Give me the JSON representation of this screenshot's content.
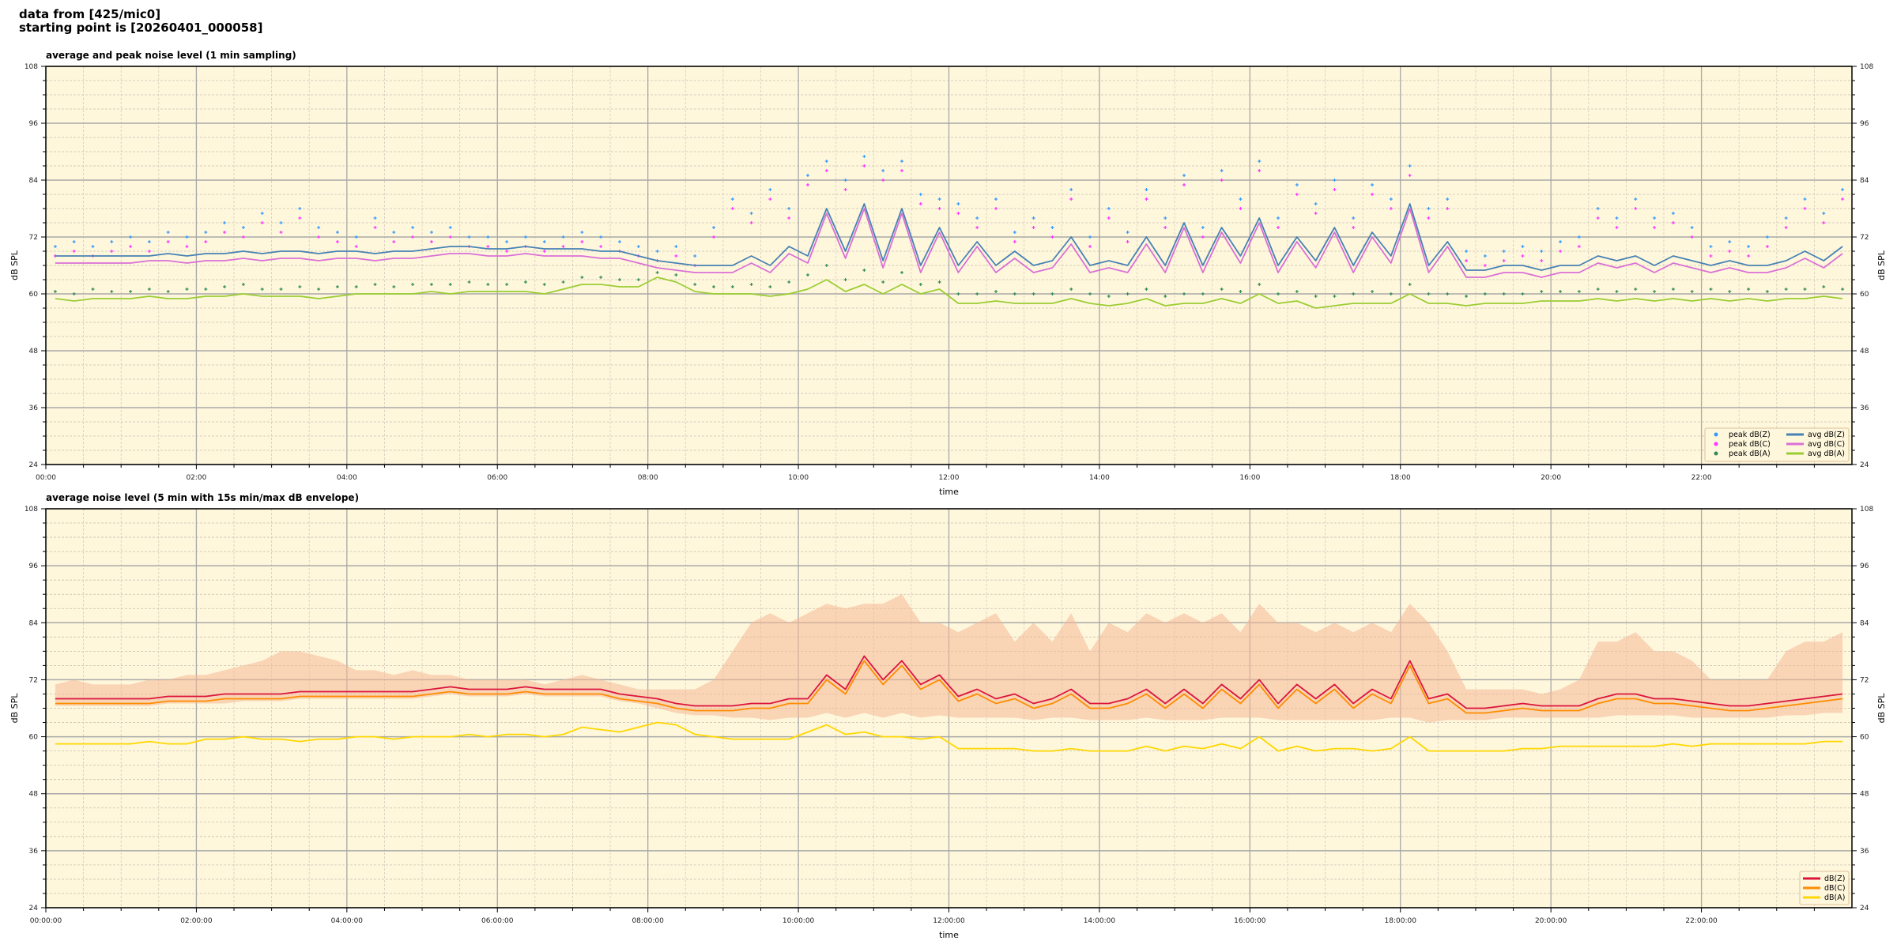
{
  "header": {
    "line1": "data from [425/mic0]",
    "line2": "starting point is [20260401_000058]"
  },
  "chart_data": [
    {
      "type": "scatter+line",
      "title": "average and peak noise level (1 min sampling)",
      "xlabel": "time",
      "ylabel": "dB SPL",
      "xlim_hours": [
        0,
        24
      ],
      "ylim": [
        24,
        108
      ],
      "yticks": [
        24,
        36,
        48,
        60,
        72,
        84,
        96,
        108
      ],
      "xticks": [
        "00:00",
        "02:00",
        "04:00",
        "06:00",
        "08:00",
        "10:00",
        "12:00",
        "14:00",
        "16:00",
        "18:00",
        "20:00",
        "22:00"
      ],
      "grid": true,
      "background": "#fff7dc",
      "legend_position": "lower-right",
      "x_step_minutes": 15,
      "scatter": [
        {
          "name": "peak dB(Z)",
          "color": "#3399ff",
          "values": [
            70,
            71,
            70,
            71,
            72,
            71,
            73,
            72,
            73,
            75,
            74,
            77,
            75,
            78,
            74,
            73,
            72,
            76,
            73,
            74,
            73,
            74,
            72,
            72,
            71,
            72,
            71,
            72,
            73,
            72,
            71,
            70,
            69,
            70,
            68,
            74,
            80,
            77,
            82,
            78,
            85,
            88,
            84,
            89,
            86,
            88,
            81,
            80,
            79,
            76,
            80,
            73,
            76,
            74,
            82,
            72,
            78,
            73,
            82,
            76,
            85,
            74,
            86,
            80,
            88,
            76,
            83,
            79,
            84,
            76,
            83,
            80,
            87,
            78,
            80,
            69,
            68,
            69,
            70,
            69,
            71,
            72,
            78,
            76,
            80,
            76,
            77,
            74,
            70,
            71,
            70,
            72,
            76,
            80,
            77,
            82
          ]
        },
        {
          "name": "peak dB(C)",
          "color": "#ff33ff",
          "values": [
            68,
            69,
            68,
            69,
            70,
            69,
            71,
            70,
            71,
            73,
            72,
            75,
            73,
            76,
            72,
            71,
            70,
            74,
            71,
            72,
            71,
            72,
            70,
            70,
            69,
            70,
            69,
            70,
            71,
            70,
            69,
            68,
            67,
            68,
            66,
            72,
            78,
            75,
            80,
            76,
            83,
            86,
            82,
            87,
            84,
            86,
            79,
            78,
            77,
            74,
            78,
            71,
            74,
            72,
            80,
            70,
            76,
            71,
            80,
            74,
            83,
            72,
            84,
            78,
            86,
            74,
            81,
            77,
            82,
            74,
            81,
            78,
            85,
            76,
            78,
            67,
            66,
            67,
            68,
            67,
            69,
            70,
            76,
            74,
            78,
            74,
            75,
            72,
            68,
            69,
            68,
            70,
            74,
            78,
            75,
            80
          ]
        },
        {
          "name": "peak dB(A)",
          "color": "#2e8b57",
          "values": [
            60.5,
            60,
            61,
            60.5,
            60.5,
            61,
            60.5,
            61,
            61,
            61.5,
            62,
            61,
            61,
            61.5,
            61,
            61.5,
            61.5,
            62,
            61.5,
            62,
            62,
            62,
            62.5,
            62,
            62,
            62.5,
            62,
            62.5,
            63.5,
            63.5,
            63,
            63,
            64.5,
            64,
            62,
            61.5,
            61.5,
            62,
            61.5,
            62.5,
            64,
            66,
            63,
            65,
            62.5,
            64.5,
            62,
            62.5,
            60,
            60,
            60.5,
            60,
            60,
            60,
            61,
            60,
            59.5,
            60,
            61,
            59.5,
            60,
            60,
            61,
            60.5,
            62,
            60,
            60.5,
            59.5,
            59.5,
            60,
            60.5,
            60,
            62,
            60,
            60,
            59.5,
            60,
            60,
            60,
            60.5,
            60.5,
            60.5,
            61,
            60.5,
            61,
            60.5,
            61,
            60.5,
            61,
            60.5,
            61,
            60.5,
            61,
            61,
            61.5,
            61
          ]
        }
      ],
      "lines": [
        {
          "name": "avg dB(Z)",
          "color": "#4682b4",
          "values": [
            68,
            68,
            68,
            68,
            68,
            68,
            68.5,
            68,
            68.5,
            68.5,
            69,
            68.5,
            69,
            69,
            68.5,
            69,
            69,
            68.5,
            69,
            69,
            69.5,
            70,
            70,
            69.5,
            69.5,
            70,
            69.5,
            69.5,
            69.5,
            69,
            69,
            68,
            67,
            66.5,
            66,
            66,
            66,
            68,
            66,
            70,
            68,
            78,
            69,
            79,
            67,
            78,
            66,
            74,
            66,
            71,
            66,
            69,
            66,
            67,
            72,
            66,
            67,
            66,
            72,
            66,
            75,
            66,
            74,
            68,
            76,
            66,
            72,
            67,
            74,
            66,
            73,
            68,
            79,
            66,
            71,
            65,
            65,
            66,
            66,
            65,
            66,
            66,
            68,
            67,
            68,
            66,
            68,
            67,
            66,
            67,
            66,
            66,
            67,
            69,
            67,
            70
          ]
        },
        {
          "name": "avg dB(C)",
          "color": "#da70d6",
          "values": [
            66.5,
            66.5,
            66.5,
            66.5,
            66.5,
            67,
            67,
            66.5,
            67,
            67,
            67.5,
            67,
            67.5,
            67.5,
            67,
            67.5,
            67.5,
            67,
            67.5,
            67.5,
            68,
            68.5,
            68.5,
            68,
            68,
            68.5,
            68,
            68,
            68,
            67.5,
            67.5,
            66.5,
            65.5,
            65,
            64.5,
            64.5,
            64.5,
            66.5,
            64.5,
            68.5,
            66.5,
            77,
            67.5,
            78,
            65.5,
            77,
            64.5,
            73,
            64.5,
            70,
            64.5,
            67.5,
            64.5,
            65.5,
            70.5,
            64.5,
            65.5,
            64.5,
            70.5,
            64.5,
            74,
            64.5,
            73,
            66.5,
            75,
            64.5,
            71,
            65.5,
            73,
            64.5,
            72,
            66.5,
            78,
            64.5,
            70,
            63.5,
            63.5,
            64.5,
            64.5,
            63.5,
            64.5,
            64.5,
            66.5,
            65.5,
            66.5,
            64.5,
            66.5,
            65.5,
            64.5,
            65.5,
            64.5,
            64.5,
            65.5,
            67.5,
            65.5,
            68.5
          ]
        },
        {
          "name": "avg dB(A)",
          "color": "#9acd32",
          "values": [
            59,
            58.5,
            59,
            59,
            59,
            59.5,
            59,
            59,
            59.5,
            59.5,
            60,
            59.5,
            59.5,
            59.5,
            59,
            59.5,
            60,
            60,
            60,
            60,
            60.5,
            60,
            60.5,
            60.5,
            60.5,
            60.5,
            60,
            61,
            62,
            62,
            61.5,
            61.5,
            63.5,
            62.5,
            60.5,
            60,
            60,
            60,
            59.5,
            60,
            61,
            63,
            60.5,
            62,
            60,
            62,
            60,
            61,
            58,
            58,
            58.5,
            58,
            58,
            58,
            59,
            58,
            57.5,
            58,
            59,
            57.5,
            58,
            58,
            59,
            58,
            60,
            58,
            58.5,
            57,
            57.5,
            58,
            58,
            58,
            60,
            58,
            58,
            57.5,
            58,
            58,
            58,
            58.5,
            58.5,
            58.5,
            59,
            58.5,
            59,
            58.5,
            59,
            58.5,
            59,
            58.5,
            59,
            58.5,
            59,
            59,
            59.5,
            59
          ]
        }
      ]
    },
    {
      "type": "line+envelope",
      "title": "average noise level (5 min with 15s min/max dB envelope)",
      "xlabel": "time",
      "ylabel": "dB SPL",
      "xlim_hours": [
        0,
        24
      ],
      "ylim": [
        24,
        108
      ],
      "yticks": [
        24,
        36,
        48,
        60,
        72,
        84,
        96,
        108
      ],
      "xticks": [
        "00:00:00",
        "02:00:00",
        "04:00:00",
        "06:00:00",
        "08:00:00",
        "10:00:00",
        "12:00:00",
        "14:00:00",
        "16:00:00",
        "18:00:00",
        "20:00:00",
        "22:00:00"
      ],
      "grid": true,
      "background": "#fff7dc",
      "legend_position": "lower-right",
      "x_step_minutes": 15,
      "envelope": {
        "color": "#f4b896",
        "max": [
          71,
          72,
          71,
          71,
          71,
          72,
          72,
          73,
          73,
          74,
          75,
          76,
          78,
          78,
          77,
          76,
          74,
          74,
          73,
          74,
          73,
          73,
          72,
          72,
          72,
          72,
          71,
          72,
          73,
          72,
          71,
          70,
          70,
          70,
          70,
          72,
          78,
          84,
          86,
          84,
          86,
          88,
          87,
          88,
          88,
          90,
          84,
          84,
          82,
          84,
          86,
          80,
          84,
          80,
          86,
          78,
          84,
          82,
          86,
          84,
          86,
          84,
          86,
          82,
          88,
          84,
          84,
          82,
          84,
          82,
          84,
          82,
          88,
          84,
          78,
          70,
          70,
          70,
          70,
          69,
          70,
          72,
          80,
          80,
          82,
          78,
          78,
          76,
          72,
          72,
          72,
          72,
          78,
          80,
          80,
          82
        ],
        "min": [
          66.5,
          66.5,
          66.5,
          66.5,
          66.5,
          66.5,
          67,
          67,
          67,
          67,
          67.5,
          67.5,
          67.5,
          68,
          68,
          68,
          68,
          68,
          68,
          68,
          68.5,
          69,
          68.5,
          68.5,
          68.5,
          69,
          68.5,
          68.5,
          68.5,
          68.5,
          67.5,
          67,
          66,
          65,
          64.5,
          64.5,
          64,
          64,
          63.5,
          64,
          64,
          65,
          64,
          65,
          64,
          65,
          64,
          64.5,
          64,
          64,
          64,
          64,
          63.5,
          64,
          64,
          63.5,
          63.5,
          63.5,
          64,
          63.5,
          63.5,
          63.5,
          64,
          64,
          64,
          63.5,
          63.5,
          63.5,
          63.5,
          63.5,
          63.5,
          64,
          64,
          63,
          63.5,
          63.5,
          63.5,
          64,
          64,
          64,
          64,
          64,
          64,
          64.5,
          64.5,
          64.5,
          64.5,
          64,
          64,
          64,
          64,
          64,
          64.5,
          64.5,
          65,
          65
        ]
      },
      "lines": [
        {
          "name": "dB(Z)",
          "color": "#dc143c",
          "values": [
            68,
            68,
            68,
            68,
            68,
            68,
            68.5,
            68.5,
            68.5,
            69,
            69,
            69,
            69,
            69.5,
            69.5,
            69.5,
            69.5,
            69.5,
            69.5,
            69.5,
            70,
            70.5,
            70,
            70,
            70,
            70.5,
            70,
            70,
            70,
            70,
            69,
            68.5,
            68,
            67,
            66.5,
            66.5,
            66.5,
            67,
            67,
            68,
            68,
            73,
            70,
            77,
            72,
            76,
            71,
            73,
            68.5,
            70,
            68,
            69,
            67,
            68,
            70,
            67,
            67,
            68,
            70,
            67,
            70,
            67,
            71,
            68,
            72,
            67,
            71,
            68,
            71,
            67,
            70,
            68,
            76,
            68,
            69,
            66,
            66,
            66.5,
            67,
            66.5,
            66.5,
            66.5,
            68,
            69,
            69,
            68,
            68,
            67.5,
            67,
            66.5,
            66.5,
            67,
            67.5,
            68,
            68.5,
            69
          ]
        },
        {
          "name": "dB(C)",
          "color": "#ff8c00",
          "values": [
            67,
            67,
            67,
            67,
            67,
            67,
            67.5,
            67.5,
            67.5,
            68,
            68,
            68,
            68,
            68.5,
            68.5,
            68.5,
            68.5,
            68.5,
            68.5,
            68.5,
            69,
            69.5,
            69,
            69,
            69,
            69.5,
            69,
            69,
            69,
            69,
            68,
            67.5,
            67,
            66,
            65.5,
            65.5,
            65.5,
            66,
            66,
            67,
            67,
            72,
            69,
            76,
            71,
            75,
            70,
            72,
            67.5,
            69,
            67,
            68,
            66,
            67,
            69,
            66,
            66,
            67,
            69,
            66,
            69,
            66,
            70,
            67,
            71,
            66,
            70,
            67,
            70,
            66,
            69,
            67,
            75,
            67,
            68,
            65,
            65,
            65.5,
            66,
            65.5,
            65.5,
            65.5,
            67,
            68,
            68,
            67,
            67,
            66.5,
            66,
            65.5,
            65.5,
            66,
            66.5,
            67,
            67.5,
            68
          ]
        },
        {
          "name": "dB(A)",
          "color": "#ffd700",
          "values": [
            58.5,
            58.5,
            58.5,
            58.5,
            58.5,
            59,
            58.5,
            58.5,
            59.5,
            59.5,
            60,
            59.5,
            59.5,
            59,
            59.5,
            59.5,
            60,
            60,
            59.5,
            60,
            60,
            60,
            60.5,
            60,
            60.5,
            60.5,
            60,
            60.5,
            62,
            61.5,
            61,
            62,
            63,
            62.5,
            60.5,
            60,
            59.5,
            59.5,
            59.5,
            59.5,
            61,
            62.5,
            60.5,
            61,
            60,
            60,
            59.5,
            60,
            57.5,
            57.5,
            57.5,
            57.5,
            57,
            57,
            57.5,
            57,
            57,
            57,
            58,
            57,
            58,
            57.5,
            58.5,
            57.5,
            60,
            57,
            58,
            57,
            57.5,
            57.5,
            57,
            57.5,
            60,
            57,
            57,
            57,
            57,
            57,
            57.5,
            57.5,
            58,
            58,
            58,
            58,
            58,
            58,
            58.5,
            58,
            58.5,
            58.5,
            58.5,
            58.5,
            58.5,
            58.5,
            59,
            59
          ]
        }
      ]
    }
  ]
}
